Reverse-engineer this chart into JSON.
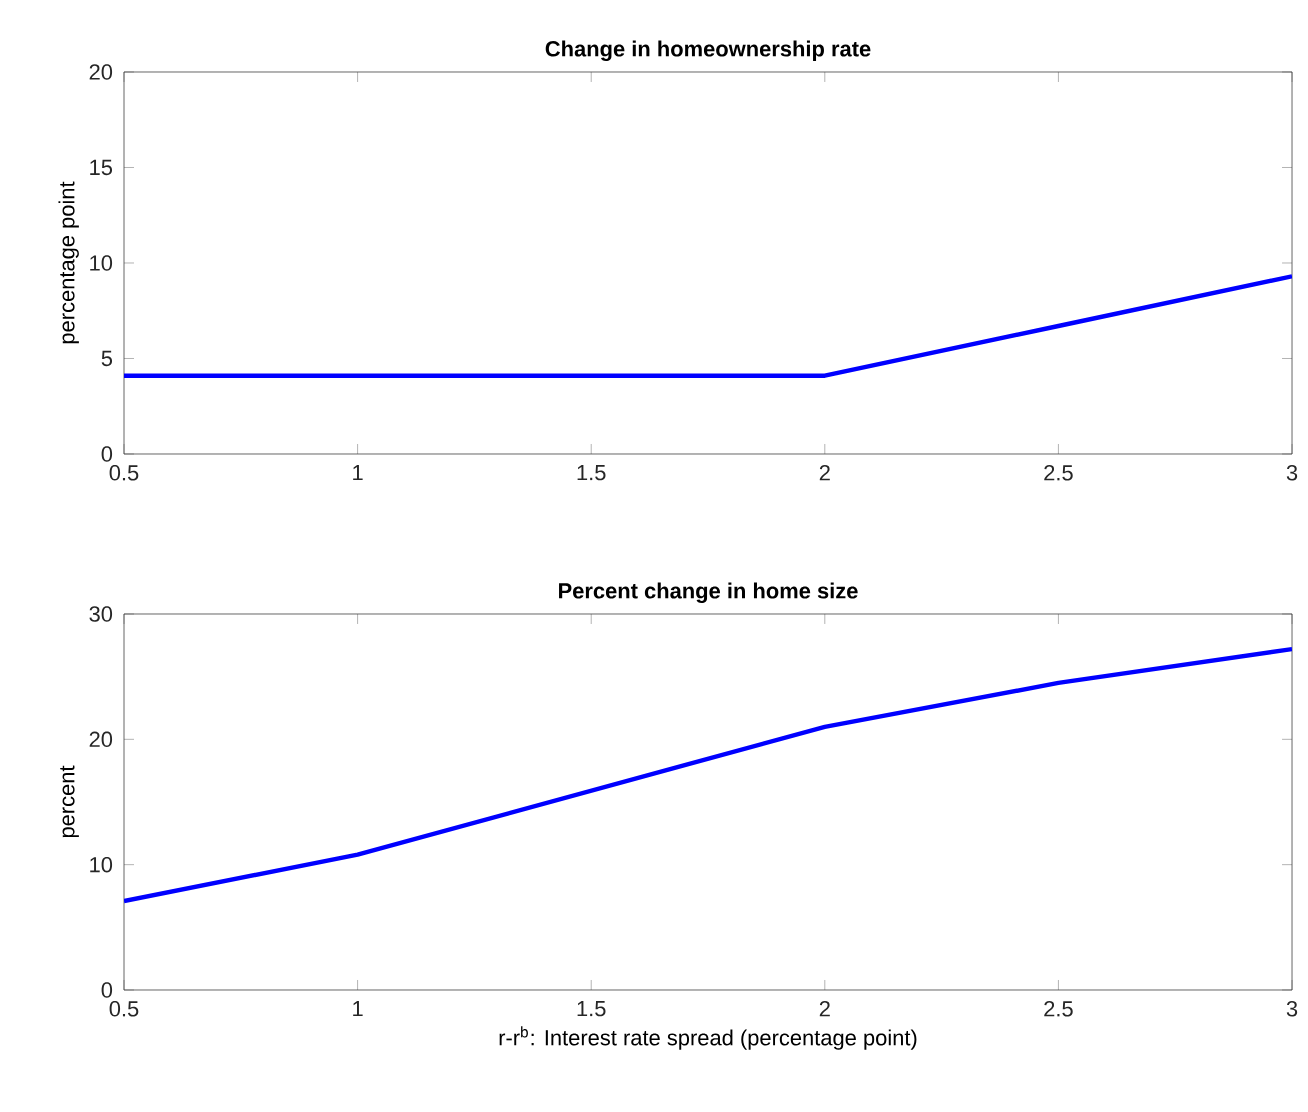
{
  "chart_data": [
    {
      "type": "line",
      "title": "Change in homeownership rate",
      "ylabel": "percentage point",
      "x": [
        0.5,
        1,
        1.5,
        2,
        2.5,
        3
      ],
      "series": [
        {
          "color": "#0000ff",
          "values": [
            4.1,
            4.1,
            4.1,
            4.1,
            6.7,
            9.3
          ]
        }
      ],
      "xlim": [
        0.5,
        3
      ],
      "ylim": [
        0,
        20
      ],
      "xticks": [
        0.5,
        1,
        1.5,
        2,
        2.5,
        3
      ],
      "yticks": [
        0,
        5,
        10,
        15,
        20
      ]
    },
    {
      "type": "line",
      "title": "Percent change in home size",
      "ylabel": "percent",
      "xlabel": "r-r$^{b}$: Interest rate spread (percentage point)",
      "x": [
        0.5,
        1,
        1.5,
        2,
        2.5,
        3
      ],
      "series": [
        {
          "color": "#0000ff",
          "values": [
            7.1,
            10.8,
            15.9,
            21.0,
            24.5,
            27.2
          ]
        }
      ],
      "xlim": [
        0.5,
        3
      ],
      "ylim": [
        0,
        30
      ],
      "xticks": [
        0.5,
        1,
        1.5,
        2,
        2.5,
        3
      ],
      "yticks": [
        0,
        10,
        20,
        30
      ]
    }
  ]
}
